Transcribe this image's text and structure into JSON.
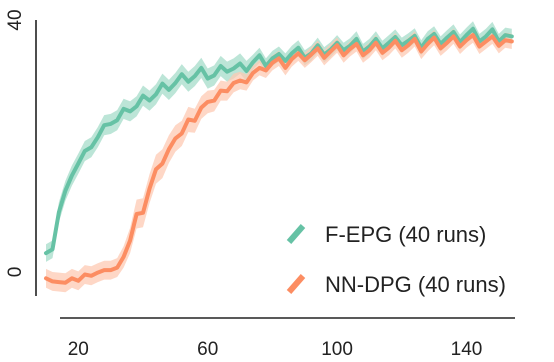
{
  "chart_data": {
    "type": "line",
    "title": "",
    "xlabel": "",
    "ylabel": "",
    "xlim": [
      10,
      155
    ],
    "ylim": [
      0,
      40
    ],
    "xticks": [
      20,
      60,
      100,
      140
    ],
    "yticks": [
      0,
      40
    ],
    "grid": false,
    "legend_position": "bottom-right",
    "series": [
      {
        "name": "F-EPG (40 runs)",
        "color": "#66c2a5",
        "band_color": "#a6dcc9",
        "x": [
          10,
          12,
          14,
          16,
          18,
          20,
          22,
          24,
          26,
          28,
          30,
          32,
          34,
          36,
          38,
          40,
          42,
          44,
          46,
          48,
          50,
          52,
          54,
          56,
          58,
          60,
          62,
          64,
          66,
          68,
          70,
          72,
          74,
          76,
          78,
          80,
          82,
          84,
          86,
          88,
          90,
          92,
          94,
          96,
          98,
          100,
          102,
          104,
          106,
          108,
          110,
          112,
          114,
          116,
          118,
          120,
          122,
          124,
          126,
          128,
          130,
          132,
          134,
          136,
          138,
          140,
          142,
          144,
          146,
          148,
          150,
          152,
          154
        ],
        "y": [
          3.0,
          3.6,
          9.5,
          12.9,
          15.3,
          17.2,
          19.2,
          19.8,
          21.4,
          23.3,
          23.5,
          24.1,
          25.9,
          25.5,
          26.3,
          28.0,
          27.2,
          28.2,
          29.9,
          28.9,
          30.0,
          31.4,
          30.2,
          31.1,
          32.4,
          30.7,
          31.2,
          32.7,
          31.8,
          32.3,
          33.1,
          31.9,
          33.3,
          34.4,
          32.7,
          33.9,
          34.6,
          33.5,
          34.7,
          35.6,
          34.0,
          34.7,
          36.0,
          34.5,
          35.3,
          36.4,
          35.2,
          35.9,
          37.0,
          35.0,
          35.8,
          37.0,
          35.5,
          36.4,
          37.3,
          36.0,
          36.7,
          37.5,
          35.6,
          37.0,
          37.8,
          36.2,
          37.2,
          38.1,
          36.5,
          37.6,
          38.6,
          36.6,
          37.4,
          38.5,
          36.6,
          37.6,
          37.4
        ],
        "spread": [
          1.4,
          1.4,
          1.6,
          1.6,
          1.6,
          1.6,
          1.6,
          1.6,
          1.6,
          1.6,
          1.6,
          1.6,
          1.6,
          1.6,
          1.6,
          1.6,
          1.6,
          1.6,
          1.6,
          1.6,
          1.6,
          1.6,
          1.6,
          1.6,
          1.6,
          1.6,
          1.6,
          1.6,
          1.6,
          1.6,
          1.6,
          1.6,
          1.2,
          1.2,
          1.2,
          1.2,
          1.2,
          1.2,
          1.2,
          1.2,
          1.2,
          1.2,
          1.2,
          1.2,
          1.2,
          1.2,
          1.2,
          1.2,
          1.2,
          1.2,
          1.2,
          1.2,
          1.2,
          1.2,
          1.2,
          1.2,
          1.2,
          1.2,
          1.2,
          1.2,
          1.2,
          1.2,
          1.2,
          1.2,
          1.2,
          1.2,
          1.2,
          1.2,
          1.2,
          1.2,
          1.2,
          1.2,
          1.2
        ]
      },
      {
        "name": "NN-DPG (40 runs)",
        "color": "#fc8d62",
        "band_color": "#fdc9b3",
        "x": [
          10,
          12,
          14,
          16,
          18,
          20,
          22,
          24,
          26,
          28,
          30,
          32,
          34,
          36,
          38,
          40,
          42,
          44,
          46,
          48,
          50,
          52,
          54,
          56,
          58,
          60,
          62,
          64,
          66,
          68,
          70,
          72,
          74,
          76,
          78,
          80,
          82,
          84,
          86,
          88,
          90,
          92,
          94,
          96,
          98,
          100,
          102,
          104,
          106,
          108,
          110,
          112,
          114,
          116,
          118,
          120,
          122,
          124,
          126,
          128,
          130,
          132,
          134,
          136,
          138,
          140,
          142,
          144,
          146,
          148,
          150,
          152,
          154
        ],
        "y": [
          -1.0,
          -1.5,
          -1.6,
          -1.7,
          -1.0,
          -1.4,
          -0.4,
          -0.6,
          -0.1,
          0.3,
          0.3,
          0.7,
          2.4,
          5.0,
          9.2,
          9.4,
          13.2,
          16.3,
          17.2,
          19.5,
          21.2,
          22.0,
          24.2,
          24.0,
          26.1,
          27.0,
          27.2,
          28.8,
          28.7,
          30.0,
          30.4,
          30.1,
          31.6,
          32.4,
          32.0,
          33.2,
          33.9,
          32.4,
          33.8,
          34.7,
          33.6,
          34.5,
          35.5,
          34.0,
          35.0,
          36.0,
          34.4,
          35.4,
          36.2,
          34.4,
          35.2,
          36.4,
          34.8,
          35.6,
          36.7,
          35.2,
          36.0,
          37.0,
          35.0,
          36.2,
          37.2,
          35.5,
          36.4,
          37.4,
          35.8,
          36.8,
          37.6,
          35.8,
          36.6,
          37.4,
          35.9,
          36.8,
          36.6
        ],
        "spread": [
          1.5,
          1.5,
          1.5,
          1.5,
          1.5,
          1.5,
          1.5,
          1.5,
          1.5,
          1.5,
          1.5,
          1.5,
          1.7,
          2.0,
          2.3,
          2.3,
          2.3,
          2.3,
          2.3,
          2.2,
          2.1,
          2.0,
          2.0,
          1.9,
          1.8,
          1.8,
          1.7,
          1.6,
          1.5,
          1.5,
          1.4,
          1.3,
          1.2,
          1.2,
          1.2,
          1.2,
          1.2,
          1.2,
          1.2,
          1.2,
          1.2,
          1.2,
          1.2,
          1.2,
          1.2,
          1.2,
          1.2,
          1.2,
          1.2,
          1.2,
          1.2,
          1.2,
          1.2,
          1.2,
          1.2,
          1.2,
          1.2,
          1.2,
          1.2,
          1.2,
          1.2,
          1.2,
          1.2,
          1.2,
          1.2,
          1.2,
          1.2,
          1.2,
          1.2,
          1.2,
          1.2,
          1.2,
          1.2
        ]
      }
    ]
  }
}
